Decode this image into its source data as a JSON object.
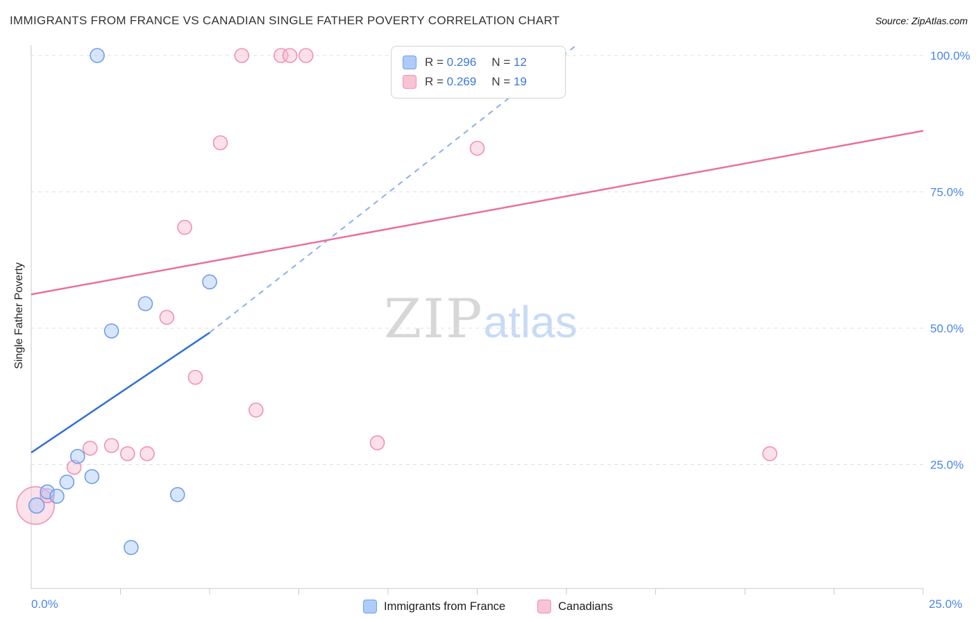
{
  "header": {
    "title": "IMMIGRANTS FROM FRANCE VS CANADIAN SINGLE FATHER POVERTY CORRELATION CHART",
    "source": "Source: ZipAtlas.com"
  },
  "axes": {
    "y_title": "Single Father Poverty",
    "x_min_label": "0.0%",
    "x_max_label": "25.0%"
  },
  "watermark": {
    "part1": "ZIP",
    "part2": "atlas"
  },
  "legend_box": {
    "rows": [
      {
        "series": "Immigrants from France",
        "r_label": "R =",
        "r_value": "0.296",
        "n_label": "N =",
        "n_value": "12"
      },
      {
        "series": "Canadians",
        "r_label": "R =",
        "r_value": "0.269",
        "n_label": "N =",
        "n_value": "19"
      }
    ]
  },
  "bottom_legend": {
    "items": [
      {
        "label": "Immigrants from France"
      },
      {
        "label": "Canadians"
      }
    ]
  },
  "chart_data": {
    "type": "scatter",
    "title": "IMMIGRANTS FROM FRANCE VS CANADIAN SINGLE FATHER POVERTY CORRELATION CHART",
    "xlabel": "Immigrants from France",
    "ylabel": "Single Father Poverty",
    "xlim": [
      0,
      25
    ],
    "ylim": [
      0,
      105
    ],
    "xtick_step": 2.5,
    "grid": true,
    "legend_position": "top-center",
    "axis_label_color": "#4a86e8",
    "grid_color": "#dcdfe5",
    "axis_color": "#c8c8c8",
    "yticks": [
      {
        "v": 100,
        "label": "100.0%"
      },
      {
        "v": 75,
        "label": "75.0%"
      },
      {
        "v": 50,
        "label": "50.0%"
      },
      {
        "v": 25,
        "label": "25.0%"
      }
    ],
    "series": [
      {
        "name": "Immigrants from France",
        "R": 0.296,
        "N": 12,
        "color_fill": "#a8c7fa",
        "color_stroke": "#6d9eeb",
        "points": [
          {
            "x": 0.15,
            "y": 17.5,
            "r": 11
          },
          {
            "x": 0.45,
            "y": 20.0,
            "r": 10
          },
          {
            "x": 0.72,
            "y": 19.2,
            "r": 10
          },
          {
            "x": 1.0,
            "y": 21.8,
            "r": 10
          },
          {
            "x": 1.3,
            "y": 26.5,
            "r": 10
          },
          {
            "x": 1.7,
            "y": 22.8,
            "r": 10
          },
          {
            "x": 1.85,
            "y": 100.0,
            "r": 10
          },
          {
            "x": 2.25,
            "y": 49.5,
            "r": 10
          },
          {
            "x": 2.8,
            "y": 9.8,
            "r": 10
          },
          {
            "x": 3.2,
            "y": 54.5,
            "r": 10
          },
          {
            "x": 4.1,
            "y": 19.5,
            "r": 10
          },
          {
            "x": 5.0,
            "y": 58.5,
            "r": 10
          }
        ]
      },
      {
        "name": "Canadians",
        "R": 0.269,
        "N": 19,
        "color_fill": "#f6bcce",
        "color_stroke": "#f291b1",
        "points": [
          {
            "x": 0.12,
            "y": 17.5,
            "r": 27
          },
          {
            "x": 0.45,
            "y": 19.3,
            "r": 10
          },
          {
            "x": 1.2,
            "y": 24.5,
            "r": 10
          },
          {
            "x": 1.65,
            "y": 28.0,
            "r": 10
          },
          {
            "x": 2.25,
            "y": 28.5,
            "r": 10
          },
          {
            "x": 2.7,
            "y": 27.0,
            "r": 10
          },
          {
            "x": 3.25,
            "y": 27.0,
            "r": 10
          },
          {
            "x": 3.8,
            "y": 52.0,
            "r": 10
          },
          {
            "x": 4.3,
            "y": 68.5,
            "r": 10
          },
          {
            "x": 4.6,
            "y": 41.0,
            "r": 10
          },
          {
            "x": 5.3,
            "y": 84.0,
            "r": 10
          },
          {
            "x": 5.9,
            "y": 100.0,
            "r": 10
          },
          {
            "x": 6.3,
            "y": 35.0,
            "r": 10
          },
          {
            "x": 7.0,
            "y": 100.0,
            "r": 10
          },
          {
            "x": 7.25,
            "y": 100.0,
            "r": 10
          },
          {
            "x": 7.7,
            "y": 100.0,
            "r": 10
          },
          {
            "x": 9.7,
            "y": 29.0,
            "r": 10
          },
          {
            "x": 12.5,
            "y": 83.0,
            "r": 10
          },
          {
            "x": 20.7,
            "y": 27.0,
            "r": 10
          }
        ]
      }
    ],
    "trend_lines": [
      {
        "series": "Immigrants from France",
        "style": "solid",
        "color": "#2f6fd6",
        "x1": 0,
        "y1": 27.2,
        "x2": 5.0,
        "y2": 49.2
      },
      {
        "series": "Immigrants from France",
        "style": "dashed",
        "color": "#8ab0e8",
        "x1": 5.0,
        "y1": 49.2,
        "x2": 15.3,
        "y2": 102.0
      },
      {
        "series": "Canadians",
        "style": "solid",
        "color": "#e8709d",
        "x1": 0,
        "y1": 56.2,
        "x2": 25,
        "y2": 86.2
      }
    ]
  }
}
